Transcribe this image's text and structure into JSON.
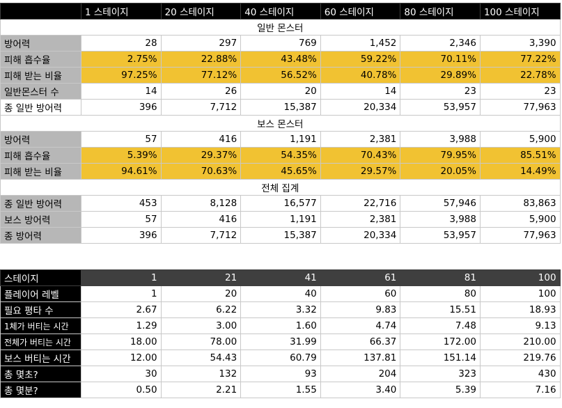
{
  "top": {
    "headers": [
      "",
      "1 스테이지",
      "20 스테이지",
      "40 스테이지",
      "60 스테이지",
      "80 스테이지",
      "100 스테이지"
    ],
    "sections": [
      {
        "title": "일반 몬스터",
        "rows": [
          {
            "label": "방어력",
            "style": "gray",
            "values": [
              "28",
              "297",
              "769",
              "1,452",
              "2,346",
              "3,390"
            ]
          },
          {
            "label": "피해 흡수율",
            "style": "yellow",
            "values": [
              "2.75%",
              "22.88%",
              "43.48%",
              "59.22%",
              "70.11%",
              "77.22%"
            ]
          },
          {
            "label": "피해 받는 비율",
            "style": "yellow",
            "values": [
              "97.25%",
              "77.12%",
              "56.52%",
              "40.78%",
              "29.89%",
              "22.78%"
            ]
          },
          {
            "label": "일반몬스터 수",
            "style": "gray",
            "values": [
              "14",
              "26",
              "20",
              "14",
              "23",
              "23"
            ]
          },
          {
            "label": "종 일반 방어력",
            "style": "plain",
            "values": [
              "396",
              "7,712",
              "15,387",
              "20,334",
              "53,957",
              "77,963"
            ]
          }
        ]
      },
      {
        "title": "보스 몬스터",
        "rows": [
          {
            "label": "방어력",
            "style": "gray",
            "values": [
              "57",
              "416",
              "1,191",
              "2,381",
              "3,988",
              "5,900"
            ]
          },
          {
            "label": "피해 흡수율",
            "style": "yellow",
            "values": [
              "5.39%",
              "29.37%",
              "54.35%",
              "70.43%",
              "79.95%",
              "85.51%"
            ]
          },
          {
            "label": "피해 받는 비율",
            "style": "yellow",
            "values": [
              "94.61%",
              "70.63%",
              "45.65%",
              "29.57%",
              "20.05%",
              "14.49%"
            ]
          }
        ]
      },
      {
        "title": "전체 집계",
        "rows": [
          {
            "label": "종 일반 방어력",
            "style": "gray",
            "values": [
              "453",
              "8,128",
              "16,577",
              "22,716",
              "57,946",
              "83,863"
            ]
          },
          {
            "label": "보스 방어력",
            "style": "gray",
            "values": [
              "57",
              "416",
              "1,191",
              "2,381",
              "3,988",
              "5,900"
            ]
          },
          {
            "label": "종 방어력",
            "style": "gray",
            "values": [
              "396",
              "7,712",
              "15,387",
              "20,334",
              "53,957",
              "77,963"
            ]
          }
        ]
      }
    ]
  },
  "bottom": {
    "header": {
      "label": "스테이지",
      "values": [
        "1",
        "21",
        "41",
        "61",
        "81",
        "100"
      ]
    },
    "rows": [
      {
        "label": "플레이어 레벨",
        "values": [
          "1",
          "20",
          "40",
          "60",
          "80",
          "100"
        ]
      },
      {
        "label": "필요 평타 수",
        "values": [
          "2.67",
          "6.22",
          "3.32",
          "9.83",
          "15.51",
          "18.93"
        ]
      },
      {
        "label": "1체가 버티는 시간",
        "small": true,
        "values": [
          "1.29",
          "3.00",
          "1.60",
          "4.74",
          "7.48",
          "9.13"
        ]
      },
      {
        "label": "전체가 버티는 시간",
        "small": true,
        "values": [
          "18.00",
          "78.00",
          "31.99",
          "66.37",
          "172.00",
          "210.00"
        ]
      },
      {
        "label": "보스 버티는 시간",
        "values": [
          "12.00",
          "54.43",
          "60.79",
          "137.81",
          "151.14",
          "219.76"
        ]
      },
      {
        "label": "총 몇초?",
        "values": [
          "30",
          "132",
          "93",
          "204",
          "323",
          "430"
        ]
      },
      {
        "label": "총 몇분?",
        "values": [
          "0.50",
          "2.21",
          "1.55",
          "3.40",
          "5.39",
          "7.16"
        ]
      }
    ]
  }
}
